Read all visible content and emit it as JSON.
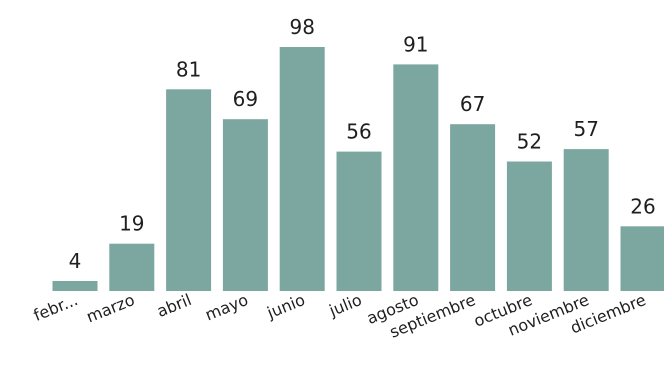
{
  "chart_data": {
    "type": "bar",
    "categories": [
      "febr...",
      "marzo",
      "abril",
      "mayo",
      "junio",
      "julio",
      "agosto",
      "septiembre",
      "octubre",
      "noviembre",
      "diciembre"
    ],
    "values": [
      4,
      19,
      81,
      69,
      98,
      56,
      91,
      67,
      52,
      57,
      26
    ],
    "bar_color": "#7ba7a0",
    "ylim": [
      0,
      98
    ],
    "grid": false,
    "legend": "none",
    "data_labels": true,
    "title": "",
    "xlabel": "",
    "ylabel": ""
  }
}
